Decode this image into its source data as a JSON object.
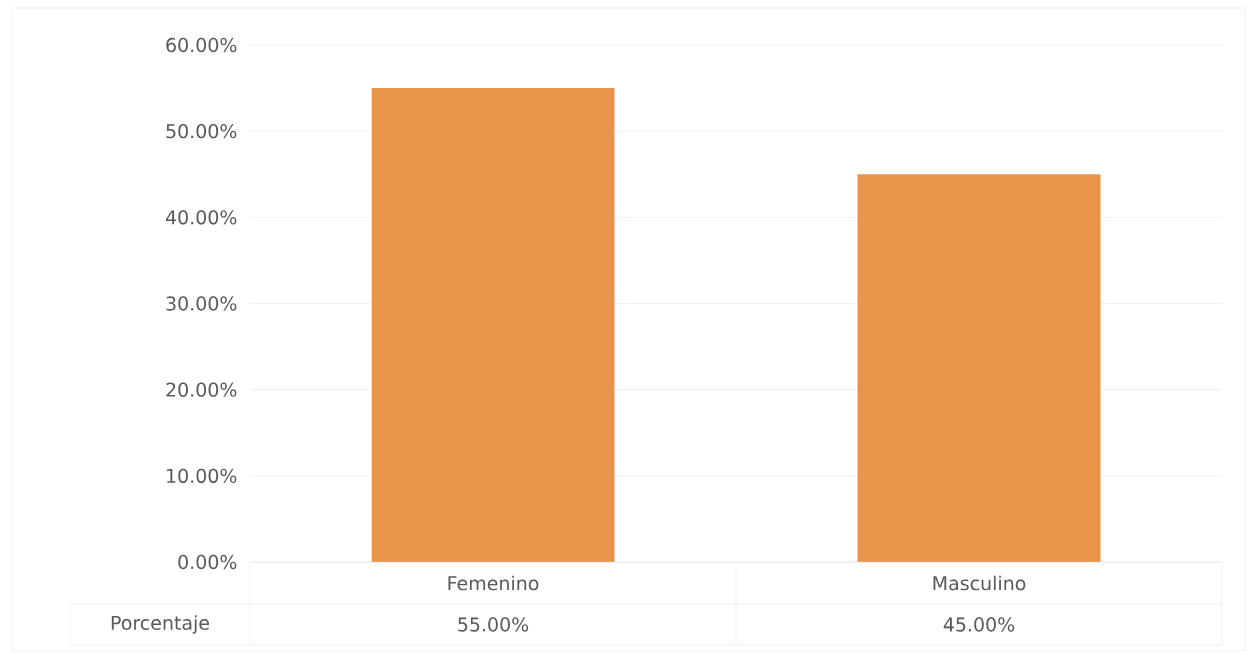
{
  "chart_data": {
    "type": "bar",
    "categories": [
      "Femenino",
      "Masculino"
    ],
    "series": [
      {
        "name": "Porcentaje",
        "color": "#e8954a",
        "values": [
          55,
          45
        ],
        "value_labels": [
          "55.00%",
          "45.00%"
        ]
      }
    ],
    "ylim": [
      0,
      60
    ],
    "yticks": [
      {
        "value": 0,
        "label": "0.00%"
      },
      {
        "value": 10,
        "label": "10.00%"
      },
      {
        "value": 20,
        "label": "20.00%"
      },
      {
        "value": 30,
        "label": "30.00%"
      },
      {
        "value": 40,
        "label": "40.00%"
      },
      {
        "value": 50,
        "label": "50.00%"
      },
      {
        "value": 60,
        "label": "60.00%"
      }
    ],
    "grid": "y"
  }
}
